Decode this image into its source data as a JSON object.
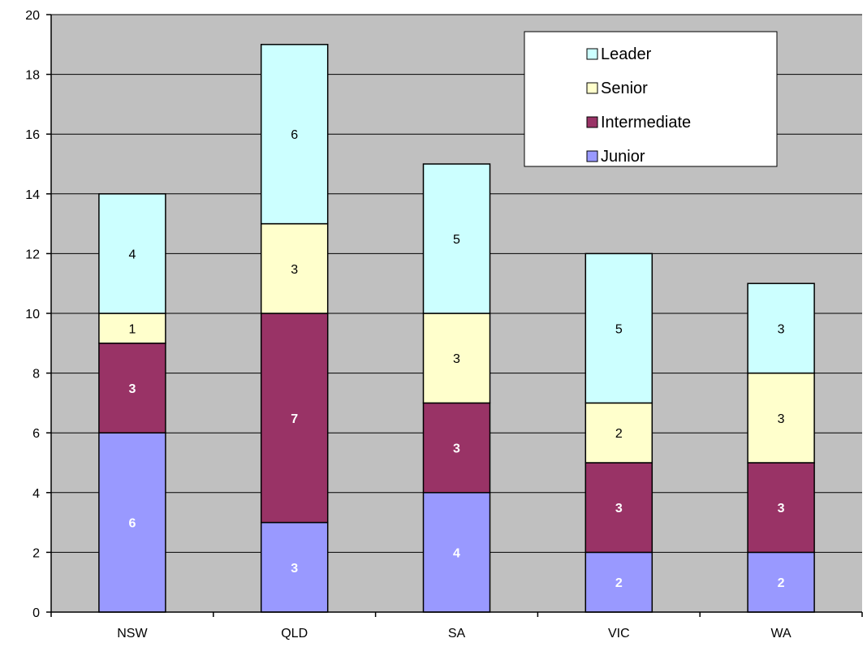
{
  "chart_data": {
    "type": "bar",
    "stacked": true,
    "title": "",
    "xlabel": "",
    "ylabel": "",
    "categories": [
      "NSW",
      "QLD",
      "SA",
      "VIC",
      "WA"
    ],
    "ylim": [
      0,
      20
    ],
    "yticks": [
      0,
      2,
      4,
      6,
      8,
      10,
      12,
      14,
      16,
      18,
      20
    ],
    "grid": true,
    "legend_position": "top-right",
    "series": [
      {
        "name": "Junior",
        "values": [
          6,
          3,
          4,
          2,
          2
        ],
        "color": "#9999ff",
        "label_color": "#ffffff",
        "label_bold": true
      },
      {
        "name": "Intermediate",
        "values": [
          3,
          7,
          3,
          3,
          3
        ],
        "color": "#993366",
        "label_color": "#ffffff",
        "label_bold": true
      },
      {
        "name": "Senior",
        "values": [
          1,
          3,
          3,
          2,
          3
        ],
        "color": "#ffffcc",
        "label_color": "#000000",
        "label_bold": false
      },
      {
        "name": "Leader",
        "values": [
          4,
          6,
          5,
          5,
          3
        ],
        "color": "#ccffff",
        "label_color": "#000000",
        "label_bold": false
      }
    ],
    "legend_order": [
      "Leader",
      "Senior",
      "Intermediate",
      "Junior"
    ],
    "plot_background": "#c0c0c0",
    "title_color": "#6633ff"
  }
}
